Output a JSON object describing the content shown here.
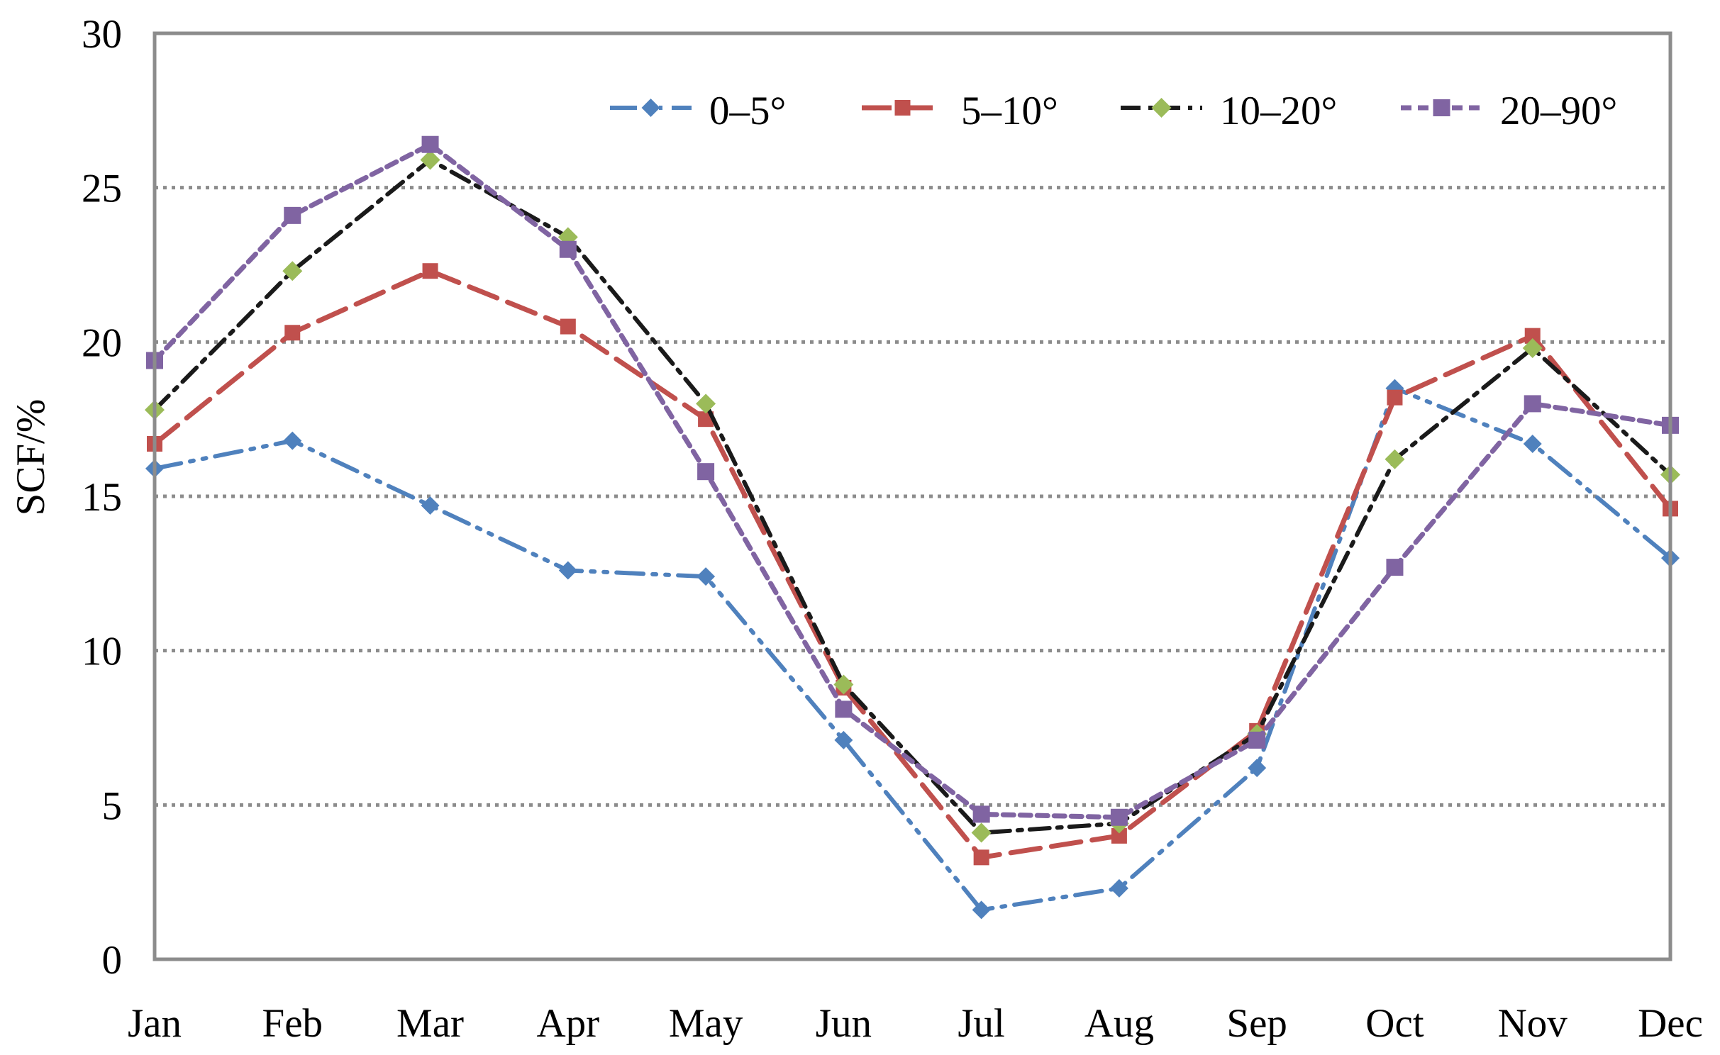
{
  "chart_data": {
    "type": "line",
    "title": "",
    "xlabel": "",
    "ylabel": "SCF/%",
    "categories": [
      "Jan",
      "Feb",
      "Mar",
      "Apr",
      "May",
      "Jun",
      "Jul",
      "Aug",
      "Sep",
      "Oct",
      "Nov",
      "Dec"
    ],
    "ylim": [
      0,
      30
    ],
    "yticks": [
      0,
      5,
      10,
      15,
      20,
      25,
      30
    ],
    "grid": "horizontal-dotted",
    "gridline_values": [
      5,
      10,
      15,
      20,
      25
    ],
    "legend_position": "top-center-inside",
    "colors": {
      "axis_frame": "#8C8C8C",
      "gridline": "#8C8C8C",
      "text": "#000000"
    },
    "series": [
      {
        "name": "0–5°",
        "line_style": "dash-dot-dot",
        "marker": "diamond",
        "line_color": "#4F81BD",
        "marker_color": "#4F81BD",
        "values": [
          15.9,
          16.8,
          14.7,
          12.6,
          12.4,
          7.1,
          1.6,
          2.3,
          6.2,
          18.5,
          16.7,
          13.0
        ]
      },
      {
        "name": "5–10°",
        "line_style": "dashed",
        "marker": "square",
        "line_color": "#C0504D",
        "marker_color": "#C0504D",
        "values": [
          16.7,
          20.3,
          22.3,
          20.5,
          17.5,
          8.8,
          3.3,
          4.0,
          7.4,
          18.2,
          20.2,
          14.6
        ]
      },
      {
        "name": "10–20°",
        "line_style": "dash-dot",
        "marker": "diamond",
        "line_color": "#1A1A1A",
        "marker_color": "#9BBB59",
        "values": [
          17.8,
          22.3,
          25.9,
          23.4,
          18.0,
          8.9,
          4.1,
          4.4,
          7.3,
          16.2,
          19.8,
          15.7
        ]
      },
      {
        "name": "20–90°",
        "line_style": "short-dash",
        "marker": "square",
        "line_color": "#8064A2",
        "marker_color": "#8064A2",
        "values": [
          19.4,
          24.1,
          26.4,
          23.0,
          15.8,
          8.1,
          4.7,
          4.6,
          7.1,
          12.7,
          18.0,
          17.3
        ]
      }
    ]
  }
}
